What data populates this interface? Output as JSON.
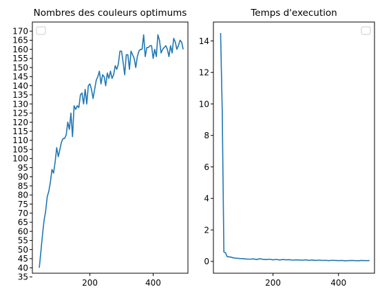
{
  "chart_data": [
    {
      "type": "line",
      "title": "Nombres des couleurs optimums",
      "xlim": [
        18,
        510
      ],
      "ylim": [
        37,
        175
      ],
      "xticks": [
        200,
        400
      ],
      "yticks": [
        35,
        40,
        45,
        50,
        55,
        60,
        65,
        70,
        75,
        80,
        85,
        90,
        95,
        100,
        105,
        110,
        115,
        120,
        125,
        130,
        135,
        140,
        145,
        150,
        155,
        160,
        165,
        170
      ],
      "legend": "top-left (empty)",
      "series": [
        {
          "x": [
            40,
            45,
            50,
            55,
            60,
            65,
            70,
            75,
            80,
            85,
            90,
            95,
            100,
            105,
            110,
            115,
            120,
            125,
            130,
            135,
            140,
            145,
            150,
            155,
            160,
            165,
            170,
            175,
            180,
            185,
            190,
            195,
            200,
            205,
            210,
            215,
            220,
            225,
            230,
            235,
            240,
            245,
            250,
            255,
            260,
            265,
            270,
            275,
            280,
            285,
            290,
            295,
            300,
            305,
            310,
            315,
            320,
            325,
            330,
            335,
            340,
            345,
            350,
            355,
            360,
            365,
            370,
            375,
            380,
            385,
            390,
            395,
            400,
            405,
            410,
            415,
            420,
            425,
            430,
            435,
            440,
            445,
            450,
            455,
            460,
            465,
            470,
            475,
            480,
            485,
            490,
            495
          ],
          "y": [
            40,
            49,
            58,
            66,
            71,
            79,
            82,
            87,
            94,
            92,
            98,
            106,
            101,
            105,
            109,
            111,
            111,
            113,
            120,
            116,
            125,
            112,
            129,
            127,
            129,
            128,
            135,
            136,
            130,
            138,
            130,
            140,
            141,
            138,
            133,
            138,
            143,
            145,
            148,
            141,
            146,
            145,
            140,
            147,
            144,
            148,
            144,
            146,
            151,
            149,
            152,
            159,
            159,
            153,
            146,
            157,
            157,
            149,
            159,
            157,
            155,
            150,
            156,
            159,
            160,
            160,
            168,
            156,
            161,
            161,
            162,
            162,
            155,
            160,
            156,
            168,
            165,
            158,
            160,
            161,
            162,
            160,
            156,
            162,
            158,
            166,
            164,
            160,
            162,
            165,
            164,
            160
          ],
          "step_note": ""
        }
      ]
    },
    {
      "type": "line",
      "title": "Temps d'execution",
      "xlim": [
        18,
        510
      ],
      "ylim": [
        -0.75,
        15.2
      ],
      "xticks": [
        200,
        400
      ],
      "yticks": [
        0,
        2,
        4,
        6,
        8,
        10,
        12,
        14
      ],
      "legend": "top-right (empty)",
      "series": [
        {
          "x": [
            40,
            45,
            50,
            55,
            60,
            70,
            80,
            90,
            100,
            110,
            120,
            130,
            140,
            150,
            160,
            170,
            180,
            190,
            200,
            210,
            220,
            230,
            240,
            250,
            260,
            270,
            280,
            290,
            300,
            310,
            320,
            330,
            340,
            350,
            360,
            370,
            380,
            390,
            400,
            410,
            420,
            430,
            440,
            450,
            460,
            470,
            480,
            490,
            495
          ],
          "y": [
            14.5,
            9.5,
            0.6,
            0.55,
            0.3,
            0.28,
            0.22,
            0.2,
            0.18,
            0.17,
            0.15,
            0.14,
            0.16,
            0.12,
            0.17,
            0.13,
            0.12,
            0.14,
            0.1,
            0.13,
            0.09,
            0.12,
            0.1,
            0.11,
            0.08,
            0.1,
            0.09,
            0.08,
            0.1,
            0.07,
            0.09,
            0.06,
            0.08,
            0.06,
            0.07,
            0.05,
            0.07,
            0.06,
            0.05,
            0.06,
            0.04,
            0.05,
            0.06,
            0.05,
            0.04,
            0.06,
            0.05,
            0.05,
            0.06
          ]
        }
      ]
    }
  ]
}
